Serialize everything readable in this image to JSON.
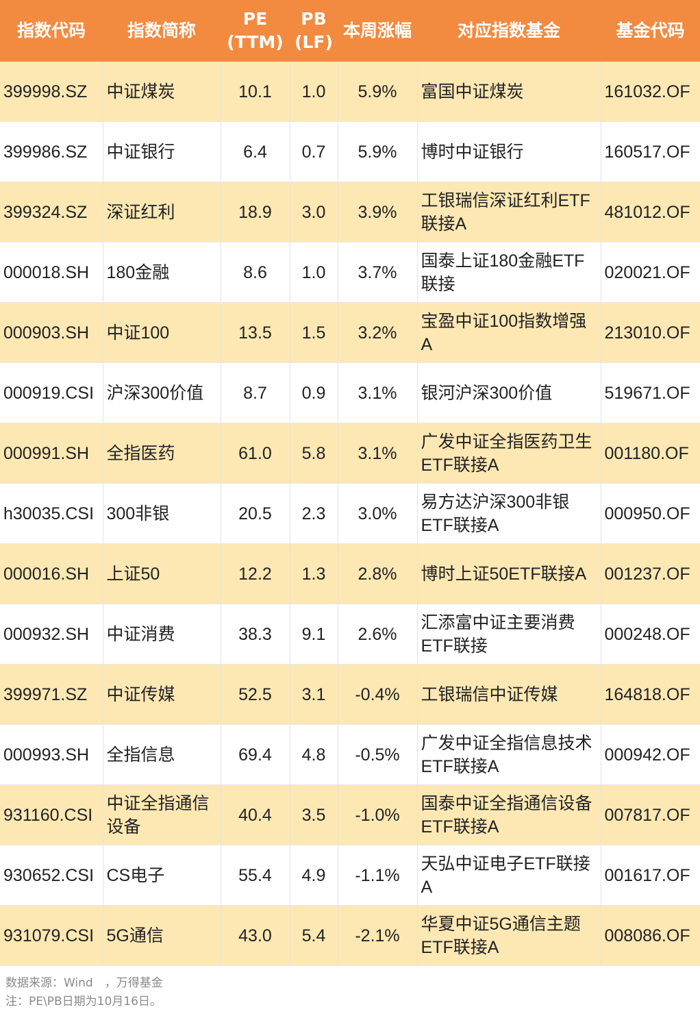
{
  "table": {
    "headers": [
      "指数代码",
      "指数简称",
      "PE\n(TTM)",
      "PB\n(LF)",
      "本周涨幅",
      "对应指数基金",
      "基金代码"
    ],
    "rows": [
      [
        "399998.SZ",
        "中证煤炭",
        "10.1",
        "1.0",
        "5.9%",
        "富国中证煤炭",
        "161032.OF"
      ],
      [
        "399986.SZ",
        "中证银行",
        "6.4",
        "0.7",
        "5.9%",
        "博时中证银行",
        "160517.OF"
      ],
      [
        "399324.SZ",
        "深证红利",
        "18.9",
        "3.0",
        "3.9%",
        "工银瑞信深证红利ETF联接A",
        "481012.OF"
      ],
      [
        "000018.SH",
        "180金融",
        "8.6",
        "1.0",
        "3.7%",
        "国泰上证180金融ETF联接",
        "020021.OF"
      ],
      [
        "000903.SH",
        "中证100",
        "13.5",
        "1.5",
        "3.2%",
        "宝盈中证100指数增强A",
        "213010.OF"
      ],
      [
        "000919.CSI",
        "沪深300价值",
        "8.7",
        "0.9",
        "3.1%",
        "银河沪深300价值",
        "519671.OF"
      ],
      [
        "000991.SH",
        "全指医药",
        "61.0",
        "5.8",
        "3.1%",
        "广发中证全指医药卫生ETF联接A",
        "001180.OF"
      ],
      [
        "h30035.CSI",
        "300非银",
        "20.5",
        "2.3",
        "3.0%",
        "易方达沪深300非银ETF联接A",
        "000950.OF"
      ],
      [
        "000016.SH",
        "上证50",
        "12.2",
        "1.3",
        "2.8%",
        "博时上证50ETF联接A",
        "001237.OF"
      ],
      [
        "000932.SH",
        "中证消费",
        "38.3",
        "9.1",
        "2.6%",
        "汇添富中证主要消费ETF联接",
        "000248.OF"
      ],
      [
        "399971.SZ",
        "中证传媒",
        "52.5",
        "3.1",
        "-0.4%",
        "工银瑞信中证传媒",
        "164818.OF"
      ],
      [
        "000993.SH",
        "全指信息",
        "69.4",
        "4.8",
        "-0.5%",
        "广发中证全指信息技术ETF联接A",
        "000942.OF"
      ],
      [
        "931160.CSI",
        "中证全指通信设备",
        "40.4",
        "3.5",
        "-1.0%",
        "国泰中证全指通信设备ETF联接A",
        "007817.OF"
      ],
      [
        "930652.CSI",
        "CS电子",
        "55.4",
        "4.9",
        "-1.1%",
        "天弘中证电子ETF联接A",
        "001617.OF"
      ],
      [
        "931079.CSI",
        "5G通信",
        "43.0",
        "5.4",
        "-2.1%",
        "华夏中证5G通信主题ETF联接A",
        "008086.OF"
      ]
    ]
  },
  "footer": {
    "source": "数据来源：Wind　，万得基金",
    "note": "注：PE\\PB日期为10月16日。"
  },
  "colors": {
    "header_bg": "#f28a40",
    "odd_row_bg": "#fde8b4",
    "even_row_bg": "#ffffff"
  }
}
